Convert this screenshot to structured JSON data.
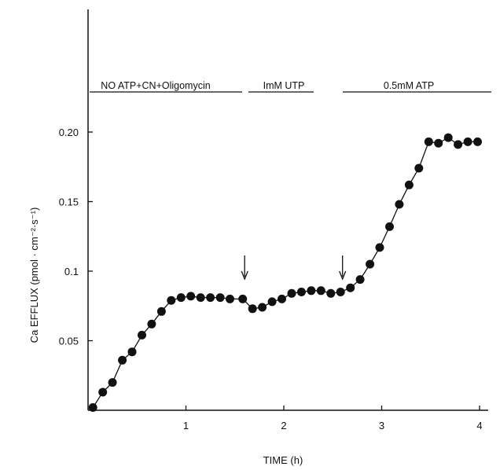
{
  "chart_data": {
    "type": "line",
    "xlabel": "TIME (h)",
    "ylabel": "Ca EFFLUX  (pmol · cm⁻²·s⁻¹)",
    "xlim": [
      0,
      4.25
    ],
    "ylim": [
      0,
      0.2
    ],
    "x_ticks": [
      1,
      2,
      3,
      4
    ],
    "x_tick_labels": [
      "1",
      "2",
      "3",
      "4"
    ],
    "y_ticks": [
      0.05,
      0.1,
      0.15,
      0.2
    ],
    "y_tick_labels": [
      "0.05",
      "0.1",
      "0.15",
      "0.20"
    ],
    "grid": false,
    "legend": "none",
    "phases": [
      {
        "label": "NO ATP+CN+Oligomycin",
        "start": 0,
        "end": 1.6
      },
      {
        "label": "ImM UTP",
        "start": 1.6,
        "end": 2.6
      },
      {
        "label": "0.5mM ATP",
        "start": 2.6,
        "end": 4.25
      }
    ],
    "arrows_at": [
      1.6,
      2.6
    ],
    "series": [
      {
        "x": [
          0.05,
          0.15,
          0.25,
          0.35,
          0.45,
          0.55,
          0.65,
          0.75,
          0.85,
          0.95,
          1.05,
          1.15,
          1.25,
          1.35,
          1.45,
          1.58,
          1.68,
          1.78,
          1.88,
          1.98,
          2.08,
          2.18,
          2.28,
          2.38,
          2.48,
          2.58,
          2.68,
          2.78,
          2.88,
          2.98,
          3.08,
          3.18,
          3.28,
          3.38,
          3.48,
          3.58,
          3.68,
          3.78,
          3.88,
          3.98
        ],
        "y": [
          0.002,
          0.013,
          0.02,
          0.036,
          0.042,
          0.054,
          0.062,
          0.071,
          0.079,
          0.081,
          0.082,
          0.081,
          0.081,
          0.081,
          0.08,
          0.08,
          0.073,
          0.074,
          0.078,
          0.08,
          0.084,
          0.085,
          0.086,
          0.086,
          0.084,
          0.085,
          0.088,
          0.094,
          0.105,
          0.117,
          0.132,
          0.148,
          0.162,
          0.174,
          0.193,
          0.192,
          0.196,
          0.191,
          0.193,
          0.193
        ]
      }
    ]
  }
}
